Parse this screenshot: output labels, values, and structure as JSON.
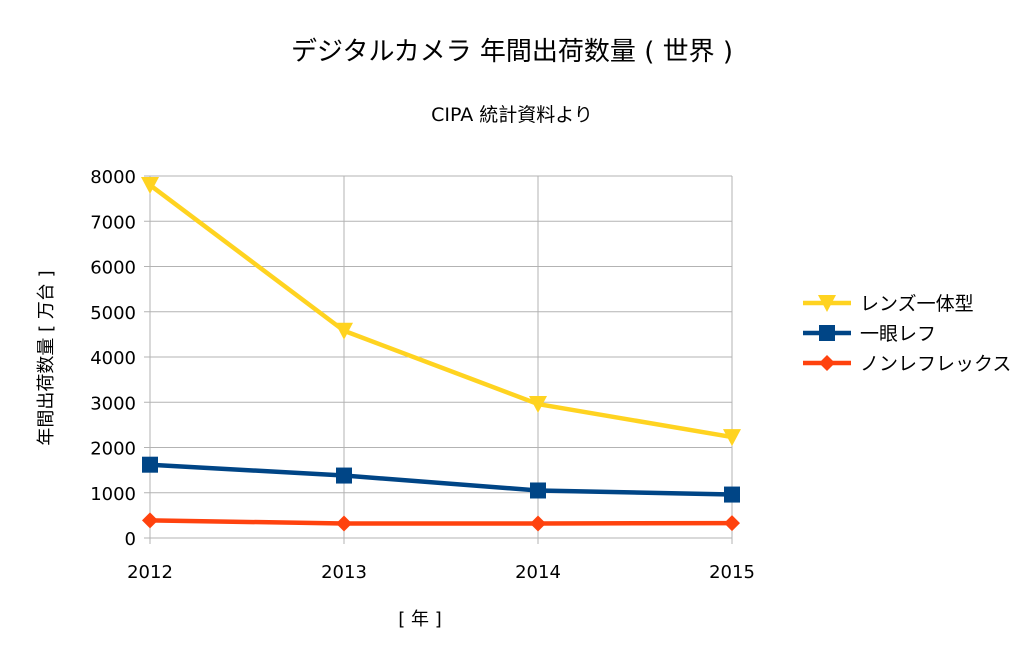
{
  "chart_data": {
    "type": "line",
    "title": "デジタルカメラ  年間出荷数量 ( 世界 )",
    "subtitle": "CIPA 統計資料より",
    "xlabel": "[ 年 ]",
    "ylabel": "年間出荷数量 [ 万台 ]",
    "categories": [
      "2012",
      "2013",
      "2014",
      "2015"
    ],
    "ylim": [
      0,
      8000
    ],
    "yticks": [
      0,
      1000,
      2000,
      3000,
      4000,
      5000,
      6000,
      7000,
      8000
    ],
    "grid": true,
    "legend_position": "right",
    "series": [
      {
        "name": "レンズ一体型",
        "values": [
          7800,
          4580,
          2960,
          2230
        ],
        "color": "#ffd320",
        "marker": "triangle-down"
      },
      {
        "name": "一眼レフ",
        "values": [
          1620,
          1380,
          1050,
          960
        ],
        "color": "#004586",
        "marker": "square"
      },
      {
        "name": "ノンレフレックス",
        "values": [
          390,
          320,
          320,
          330
        ],
        "color": "#ff420e",
        "marker": "diamond"
      }
    ]
  }
}
